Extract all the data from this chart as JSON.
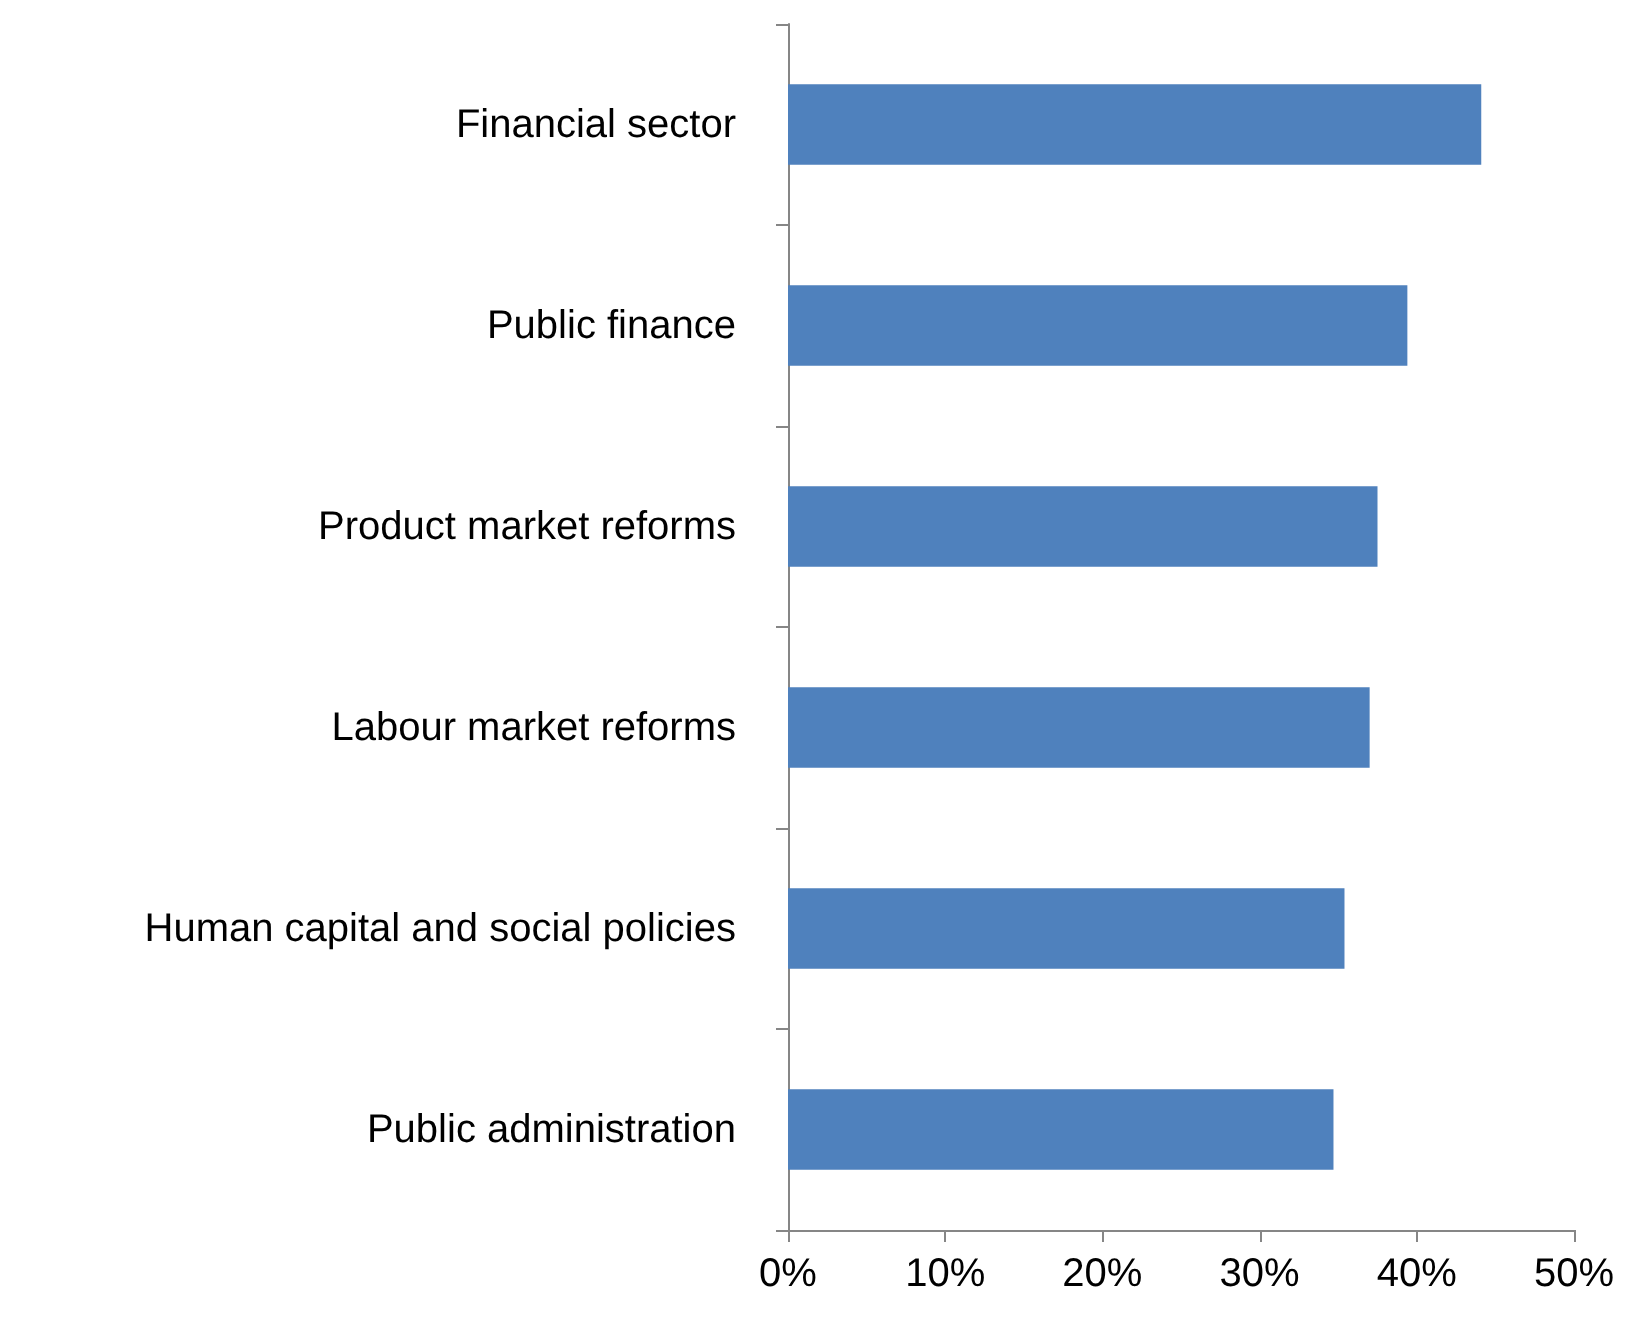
{
  "chart_data": {
    "type": "bar",
    "orientation": "horizontal",
    "categories": [
      "Financial sector",
      "Public finance",
      "Product market reforms",
      "Labour market reforms",
      "Human capital and social policies",
      "Public administration"
    ],
    "values": [
      44.1,
      39.4,
      37.5,
      37.0,
      35.4,
      34.7
    ],
    "color": "#4f81bd",
    "xlim": [
      0,
      50
    ],
    "xticks": [
      {
        "value": 0,
        "label": "0%"
      },
      {
        "value": 10,
        "label": "10%"
      },
      {
        "value": 20,
        "label": "20%"
      },
      {
        "value": 30,
        "label": "30%"
      },
      {
        "value": 40,
        "label": "40%"
      },
      {
        "value": 50,
        "label": "50%"
      }
    ],
    "grid": false
  }
}
